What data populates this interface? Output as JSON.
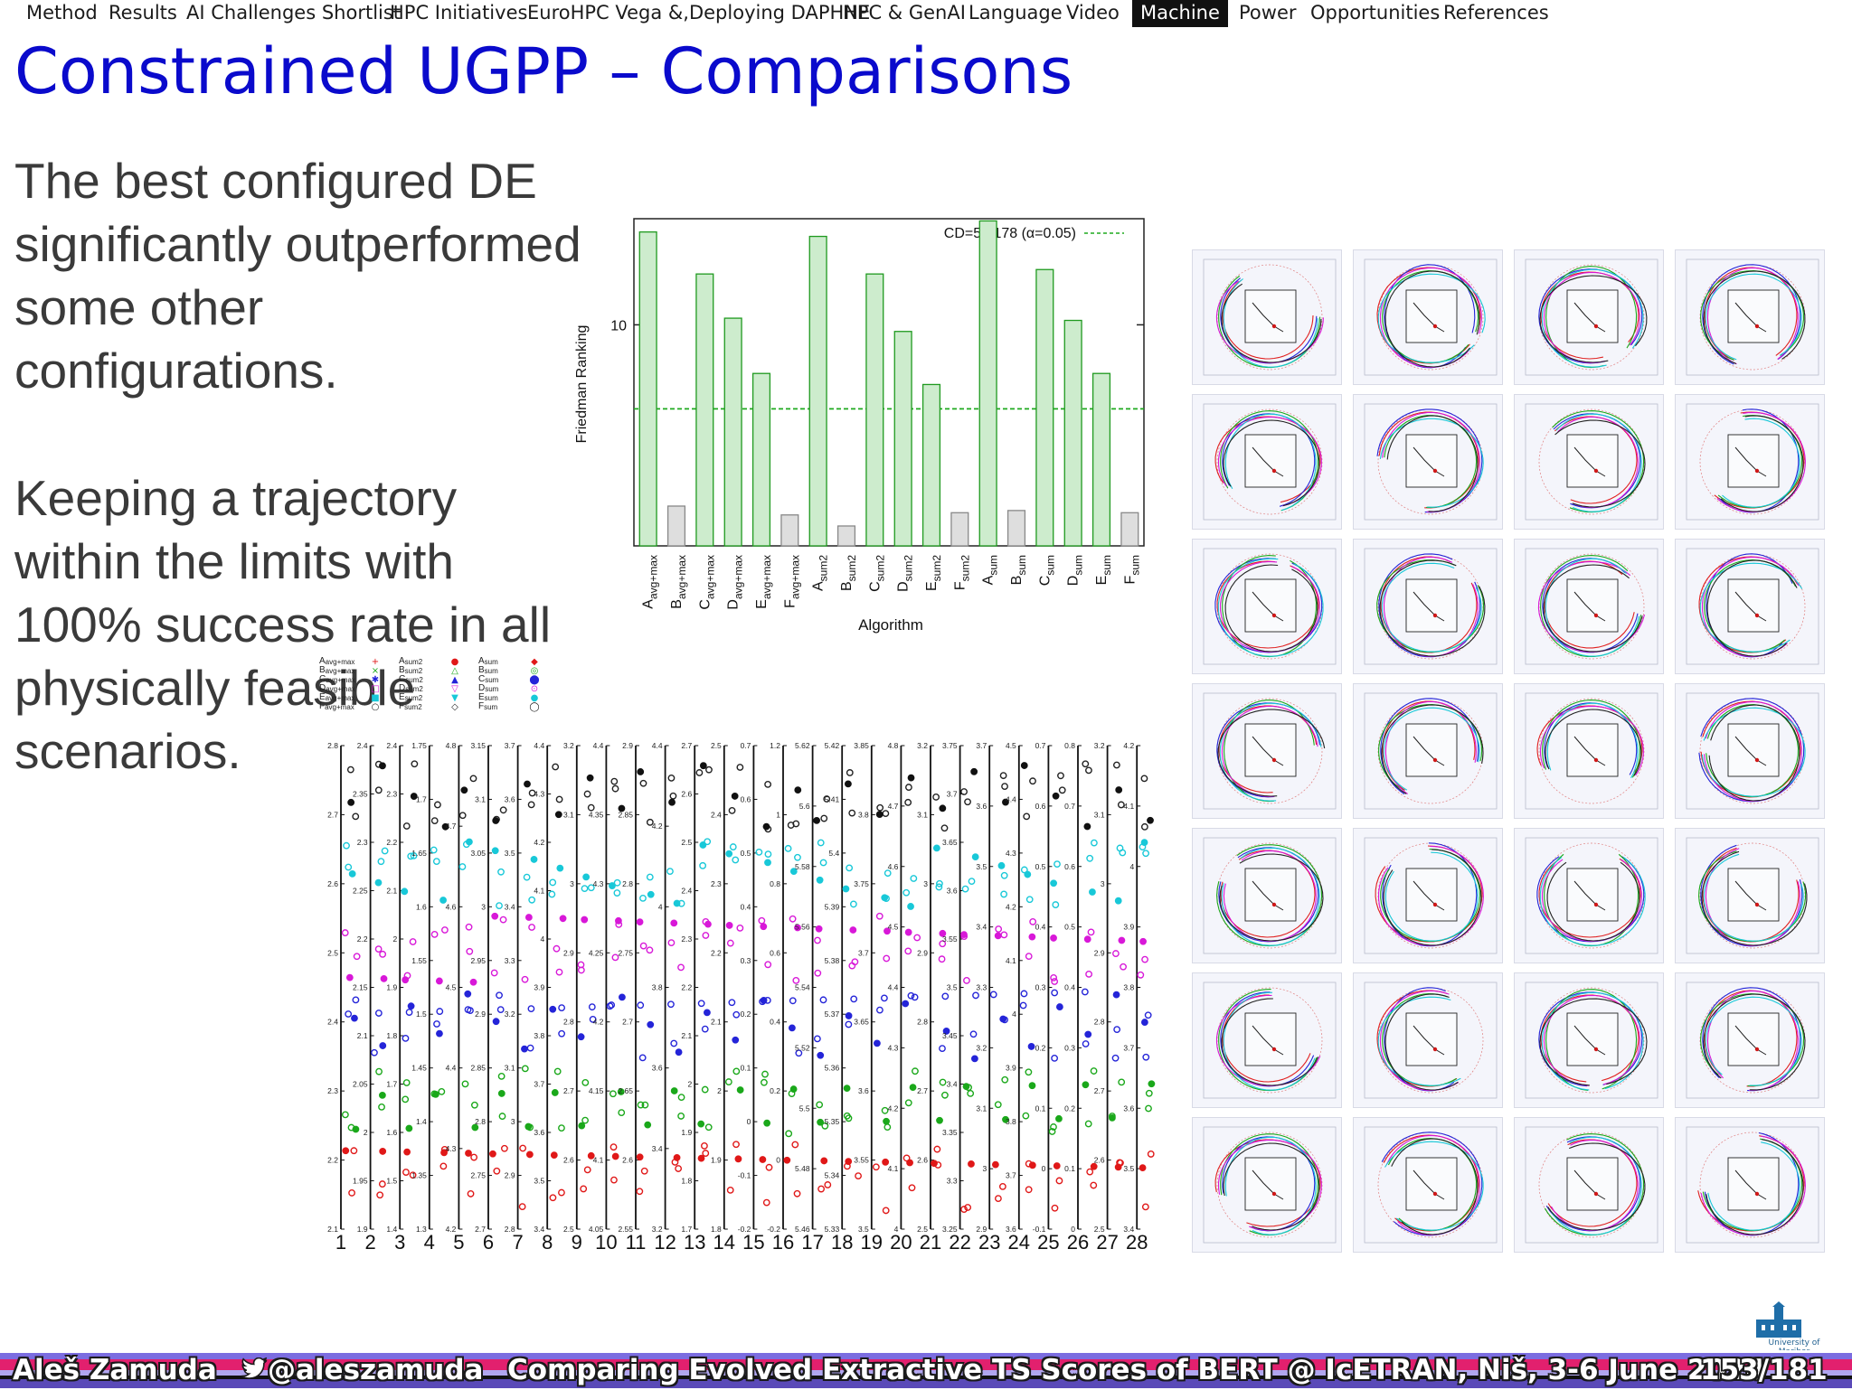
{
  "nav": {
    "items": [
      {
        "label": "Method"
      },
      {
        "label": "Results"
      },
      {
        "label": "AI Challenges Shortlist"
      },
      {
        "label": "HPC Initiatives"
      },
      {
        "label": "EuroHPC Vega &,Deploying DAPHNE"
      },
      {
        "label": "HPC & GenAI"
      },
      {
        "label": "Language"
      },
      {
        "label": "Video"
      },
      {
        "label": "Machine",
        "active": true
      },
      {
        "label": "Power"
      },
      {
        "label": "Opportunities"
      },
      {
        "label": "References"
      }
    ]
  },
  "slide": {
    "title": "Constrained UGPP – Comparisons",
    "paragraph1": "The best configured DE significantly outperformed some other configurations.",
    "paragraph2": "Keeping a trajectory within the limits with 100% success rate in all physically feasible scenarios."
  },
  "chart_data": [
    {
      "type": "bar",
      "ylabel": "Friedman Ranking",
      "xlabel": "Algorithm",
      "legend": "CD=5.0178 (α=0.05)",
      "yticks": [
        "10"
      ],
      "ylim": [
        0,
        14.8
      ],
      "threshold_line": 6.2,
      "categories": [
        {
          "base": "A",
          "sub": "avg+max"
        },
        {
          "base": "B",
          "sub": "avg+max"
        },
        {
          "base": "C",
          "sub": "avg+max"
        },
        {
          "base": "D",
          "sub": "avg+max"
        },
        {
          "base": "E",
          "sub": "avg+max"
        },
        {
          "base": "F",
          "sub": "avg+max"
        },
        {
          "base": "A",
          "sub": "sum2"
        },
        {
          "base": "B",
          "sub": "sum2"
        },
        {
          "base": "C",
          "sub": "sum2"
        },
        {
          "base": "D",
          "sub": "sum2"
        },
        {
          "base": "E",
          "sub": "sum2"
        },
        {
          "base": "F",
          "sub": "sum2"
        },
        {
          "base": "A",
          "sub": "sum"
        },
        {
          "base": "B",
          "sub": "sum"
        },
        {
          "base": "C",
          "sub": "sum"
        },
        {
          "base": "D",
          "sub": "sum"
        },
        {
          "base": "E",
          "sub": "sum"
        },
        {
          "base": "F",
          "sub": "sum"
        }
      ],
      "values": [
        14.2,
        1.8,
        12.3,
        10.3,
        7.8,
        1.4,
        14.0,
        0.9,
        12.3,
        9.7,
        7.3,
        1.5,
        14.7,
        1.6,
        12.5,
        10.2,
        7.8,
        1.5
      ],
      "significant": [
        true,
        false,
        true,
        true,
        true,
        false,
        true,
        false,
        true,
        true,
        true,
        false,
        true,
        false,
        true,
        true,
        true,
        false
      ]
    },
    {
      "type": "scatter",
      "legend": [
        {
          "base": "A",
          "sub": "avg+max",
          "marker": "+",
          "color": "#e01818"
        },
        {
          "base": "B",
          "sub": "avg+max",
          "marker": "×",
          "color": "#1aa81a"
        },
        {
          "base": "C",
          "sub": "avg+max",
          "marker": "✱",
          "color": "#2424d8"
        },
        {
          "base": "D",
          "sub": "avg+max",
          "marker": "□",
          "color": "#d818d8"
        },
        {
          "base": "E",
          "sub": "avg+max",
          "marker": "■",
          "color": "#18c8d8"
        },
        {
          "base": "F",
          "sub": "avg+max",
          "marker": "○",
          "color": "#222222"
        },
        {
          "base": "A",
          "sub": "sum2",
          "marker": "●",
          "color": "#e01818"
        },
        {
          "base": "B",
          "sub": "sum2",
          "marker": "△",
          "color": "#1aa81a"
        },
        {
          "base": "C",
          "sub": "sum2",
          "marker": "▲",
          "color": "#2424d8"
        },
        {
          "base": "D",
          "sub": "sum2",
          "marker": "▽",
          "color": "#d818d8"
        },
        {
          "base": "E",
          "sub": "sum2",
          "marker": "▼",
          "color": "#18c8d8"
        },
        {
          "base": "F",
          "sub": "sum2",
          "marker": "◇",
          "color": "#222222"
        },
        {
          "base": "A",
          "sub": "sum",
          "marker": "◆",
          "color": "#e01818"
        },
        {
          "base": "B",
          "sub": "sum",
          "marker": "◎",
          "color": "#1aa81a"
        },
        {
          "base": "C",
          "sub": "sum",
          "marker": "⬤",
          "color": "#2424d8"
        },
        {
          "base": "D",
          "sub": "sum",
          "marker": "⊙",
          "color": "#d818d8"
        },
        {
          "base": "E",
          "sub": "sum",
          "marker": "●",
          "color": "#18c8d8"
        },
        {
          "base": "F",
          "sub": "sum",
          "marker": "◯",
          "color": "#111111"
        }
      ],
      "xticks": [
        "1",
        "2",
        "3",
        "4",
        "5",
        "6",
        "7",
        "8",
        "9",
        "10",
        "11",
        "12",
        "13",
        "14",
        "15",
        "16",
        "17",
        "18",
        "19",
        "20",
        "21",
        "22",
        "23",
        "24",
        "25",
        "26",
        "27",
        "28"
      ],
      "columns": [
        {
          "ticks": [
            "2.8",
            "2.7",
            "2.6",
            "2.5",
            "2.4",
            "2.3",
            "2.2",
            "2.1"
          ]
        },
        {
          "ticks": [
            "2.4",
            "2.35",
            "2.3",
            "2.25",
            "2.2",
            "2.15",
            "2.1",
            "2.05",
            "2",
            "1.95",
            "1.9"
          ]
        },
        {
          "ticks": [
            "2.4",
            "2.3",
            "2.2",
            "2.1",
            "2",
            "1.9",
            "1.8",
            "1.7",
            "1.6",
            "1.5",
            "1.4"
          ]
        },
        {
          "ticks": [
            "1.75",
            "1.7",
            "1.65",
            "1.6",
            "1.55",
            "1.5",
            "1.45",
            "1.4",
            "1.35",
            "1.3"
          ]
        },
        {
          "ticks": [
            "4.8",
            "4.7",
            "4.6",
            "4.5",
            "4.4",
            "4.3",
            "4.2"
          ]
        },
        {
          "ticks": [
            "3.15",
            "3.1",
            "3.05",
            "3",
            "2.95",
            "2.9",
            "2.85",
            "2.8",
            "2.75",
            "2.7"
          ]
        },
        {
          "ticks": [
            "3.7",
            "3.6",
            "3.5",
            "3.4",
            "3.3",
            "3.2",
            "3.1",
            "3",
            "2.9",
            "2.8"
          ]
        },
        {
          "ticks": [
            "4.4",
            "4.3",
            "4.2",
            "4.1",
            "4",
            "3.9",
            "3.8",
            "3.7",
            "3.6",
            "3.5",
            "3.4"
          ]
        },
        {
          "ticks": [
            "3.2",
            "3.1",
            "3",
            "2.9",
            "2.8",
            "2.7",
            "2.6",
            "2.5"
          ]
        },
        {
          "ticks": [
            "4.4",
            "4.35",
            "4.3",
            "4.25",
            "4.2",
            "4.15",
            "4.1",
            "4.05"
          ]
        },
        {
          "ticks": [
            "2.9",
            "2.85",
            "2.8",
            "2.75",
            "2.7",
            "2.65",
            "2.6",
            "2.55"
          ]
        },
        {
          "ticks": [
            "4.4",
            "4.2",
            "4",
            "3.8",
            "3.6",
            "3.4",
            "3.2"
          ]
        },
        {
          "ticks": [
            "2.7",
            "2.6",
            "2.5",
            "2.4",
            "2.3",
            "2.2",
            "2.1",
            "2",
            "1.9",
            "1.8",
            "1.7"
          ]
        },
        {
          "ticks": [
            "2.5",
            "2.4",
            "2.3",
            "2.2",
            "2.1",
            "2",
            "1.9",
            "1.8"
          ]
        },
        {
          "ticks": [
            "0.7",
            "0.6",
            "0.5",
            "0.4",
            "0.3",
            "0.2",
            "0.1",
            "0",
            "-0.1",
            "-0.2"
          ]
        },
        {
          "ticks": [
            "1.2",
            "1",
            "0.8",
            "0.6",
            "0.4",
            "0.2",
            "0",
            "-0.2"
          ]
        },
        {
          "ticks": [
            "5.62",
            "5.6",
            "5.58",
            "5.56",
            "5.54",
            "5.52",
            "5.5",
            "5.48",
            "5.46"
          ]
        },
        {
          "ticks": [
            "5.42",
            "5.41",
            "5.4",
            "5.39",
            "5.38",
            "5.37",
            "5.36",
            "5.35",
            "5.34",
            "5.33"
          ]
        },
        {
          "ticks": [
            "3.85",
            "3.8",
            "3.75",
            "3.7",
            "3.65",
            "3.6",
            "3.55",
            "3.5"
          ]
        },
        {
          "ticks": [
            "4.8",
            "4.7",
            "4.6",
            "4.5",
            "4.4",
            "4.3",
            "4.2",
            "4.1",
            "4"
          ]
        },
        {
          "ticks": [
            "3.2",
            "3.1",
            "3",
            "2.9",
            "2.8",
            "2.7",
            "2.6",
            "2.5"
          ]
        },
        {
          "ticks": [
            "3.75",
            "3.7",
            "3.65",
            "3.6",
            "3.55",
            "3.5",
            "3.45",
            "3.4",
            "3.35",
            "3.3",
            "3.25"
          ]
        },
        {
          "ticks": [
            "3.7",
            "3.6",
            "3.5",
            "3.4",
            "3.3",
            "3.2",
            "3.1",
            "3",
            "2.9"
          ]
        },
        {
          "ticks": [
            "4.5",
            "4.4",
            "4.3",
            "4.2",
            "4.1",
            "4",
            "3.9",
            "3.8",
            "3.7",
            "3.6"
          ]
        },
        {
          "ticks": [
            "0.7",
            "0.6",
            "0.5",
            "0.4",
            "0.3",
            "0.2",
            "0.1",
            "0",
            "-0.1"
          ]
        },
        {
          "ticks": [
            "0.8",
            "0.7",
            "0.6",
            "0.5",
            "0.4",
            "0.3",
            "0.2",
            "0.1",
            "0"
          ]
        },
        {
          "ticks": [
            "3.2",
            "3.1",
            "3",
            "2.9",
            "2.8",
            "2.7",
            "2.6",
            "2.5"
          ]
        },
        {
          "ticks": [
            "4.2",
            "4.1",
            "4",
            "3.9",
            "3.8",
            "3.7",
            "3.6",
            "3.5",
            "3.4"
          ]
        }
      ]
    }
  ],
  "footer": {
    "author": "Aleš Zamuda",
    "handle": "@aleszamuda",
    "talk": "Comparing Evolved Extractive TS Scores of BERT @ IcETRAN, Niš, 3-6 June 2024",
    "page": "153/181",
    "logo_text": "University of Maribor"
  },
  "colors": {
    "title": "#0a0acc",
    "bar_significant": "#1f9a1f",
    "bar_nonsignificant": "#888888"
  }
}
